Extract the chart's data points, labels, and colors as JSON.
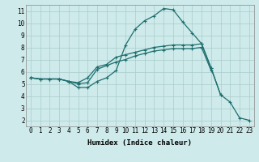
{
  "xlabel": "Humidex (Indice chaleur)",
  "xlim": [
    -0.5,
    23.5
  ],
  "ylim": [
    1.5,
    11.5
  ],
  "xticks": [
    0,
    1,
    2,
    3,
    4,
    5,
    6,
    7,
    8,
    9,
    10,
    11,
    12,
    13,
    14,
    15,
    16,
    17,
    18,
    19,
    20,
    21,
    22,
    23
  ],
  "yticks": [
    2,
    3,
    4,
    5,
    6,
    7,
    8,
    9,
    10,
    11
  ],
  "bg_color": "#ceeaea",
  "grid_color": "#aacccc",
  "line_color": "#1e6e6e",
  "line1_x": [
    0,
    1,
    2,
    3,
    4,
    5,
    6,
    7,
    8,
    9,
    10,
    11,
    12,
    13,
    14,
    15,
    16,
    17,
    18,
    19,
    20,
    21,
    22,
    23
  ],
  "line1_y": [
    5.5,
    5.4,
    5.4,
    5.4,
    5.2,
    4.7,
    4.7,
    5.2,
    5.5,
    6.1,
    8.2,
    9.5,
    10.2,
    10.6,
    11.2,
    11.1,
    10.1,
    9.2,
    8.3,
    6.3,
    4.1,
    3.5,
    2.2,
    2.0
  ],
  "line2_x": [
    0,
    1,
    2,
    3,
    4,
    5,
    6,
    7,
    8,
    9,
    10,
    11,
    12,
    13,
    14,
    15,
    16,
    17,
    18,
    19,
    20,
    21,
    22,
    23
  ],
  "line2_y": [
    5.5,
    5.4,
    5.4,
    5.4,
    5.2,
    5.1,
    5.5,
    6.4,
    6.6,
    7.2,
    7.4,
    7.6,
    7.8,
    8.0,
    8.1,
    8.2,
    8.2,
    8.2,
    8.3,
    6.3,
    4.1,
    null,
    null,
    null
  ],
  "line3_x": [
    0,
    1,
    2,
    3,
    4,
    5,
    6,
    7,
    8,
    9,
    10,
    11,
    12,
    13,
    14,
    15,
    16,
    17,
    18,
    19,
    20,
    21,
    22,
    23
  ],
  "line3_y": [
    5.5,
    5.4,
    5.4,
    5.4,
    5.2,
    5.0,
    5.1,
    6.2,
    6.5,
    6.8,
    7.0,
    7.3,
    7.5,
    7.7,
    7.8,
    7.9,
    7.9,
    7.9,
    8.0,
    6.1,
    null,
    null,
    null,
    null
  ],
  "tick_fontsize": 5.5,
  "xlabel_fontsize": 6.5,
  "linewidth": 0.9,
  "markersize": 2.5
}
